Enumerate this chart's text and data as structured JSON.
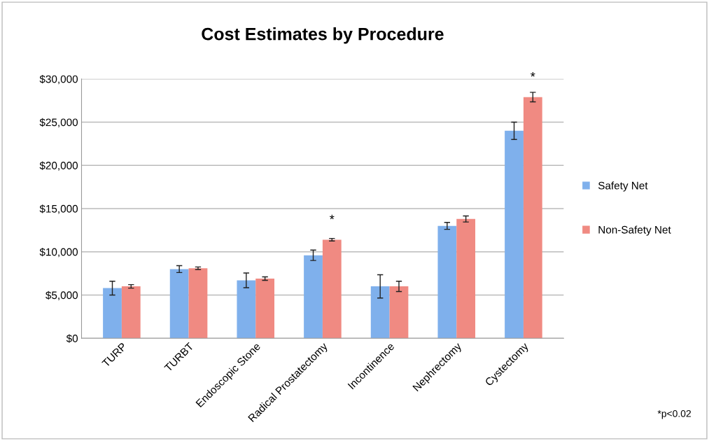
{
  "chart_data": {
    "type": "bar",
    "title": "Cost Estimates by Procedure",
    "categories": [
      "TURP",
      "TURBT",
      "Endoscopic Stone",
      "Radical Prostatectomy",
      "Incontinence",
      "Nephrectomy",
      "Cystectomy"
    ],
    "series": [
      {
        "name": "Safety Net",
        "color": "#7fb0ec",
        "values": [
          5800,
          8000,
          6700,
          9600,
          6000,
          13000,
          24000
        ],
        "errors": [
          800,
          400,
          850,
          600,
          1350,
          400,
          1000
        ]
      },
      {
        "name": "Non-Safety Net",
        "color": "#f08a82",
        "values": [
          6000,
          8100,
          6900,
          11400,
          6000,
          13800,
          27900
        ],
        "errors": [
          200,
          150,
          200,
          150,
          600,
          350,
          550
        ]
      }
    ],
    "ylim": [
      0,
      30000
    ],
    "yticks": [
      {
        "value": 0,
        "label": "$0"
      },
      {
        "value": 5000,
        "label": "$5,000"
      },
      {
        "value": 10000,
        "label": "$10,000"
      },
      {
        "value": 15000,
        "label": "$15,000"
      },
      {
        "value": 20000,
        "label": "$20,000"
      },
      {
        "value": 25000,
        "label": "$25,000"
      },
      {
        "value": 30000,
        "label": "$30,000"
      }
    ],
    "grid": "y",
    "legend": "right",
    "annotations": [
      {
        "text": "*",
        "x": "Radical Prostatectomy",
        "y": 11400
      },
      {
        "text": "*",
        "x": "Cystectomy",
        "y": 27900
      },
      "*p<0.02"
    ]
  }
}
